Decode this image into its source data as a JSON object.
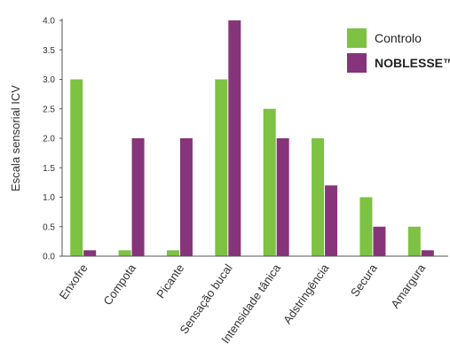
{
  "chart_data": {
    "type": "bar",
    "ylabel": "Escala sensorial ICV",
    "xlabel": "",
    "ylim": [
      0,
      4
    ],
    "yticks": [
      "0.0",
      "0.5",
      "1.0",
      "1.5",
      "2.0",
      "2.5",
      "3.0",
      "3.5",
      "4.0"
    ],
    "grid": false,
    "legend_position": "top-right",
    "categories": [
      "Enxofre",
      "Compota",
      "Picante",
      "Sensação bucal",
      "Intensidade tânica",
      "Adstringência",
      "Secura",
      "Amargura"
    ],
    "series": [
      {
        "name": "Controlo",
        "color": "#7dc242",
        "values": [
          3.0,
          0.1,
          0.1,
          3.0,
          2.5,
          2.0,
          1.0,
          0.5
        ]
      },
      {
        "name": "NOBLESSE™",
        "color": "#86357a",
        "values": [
          0.1,
          2.0,
          2.0,
          4.0,
          2.0,
          1.2,
          0.5,
          0.1
        ]
      }
    ]
  }
}
